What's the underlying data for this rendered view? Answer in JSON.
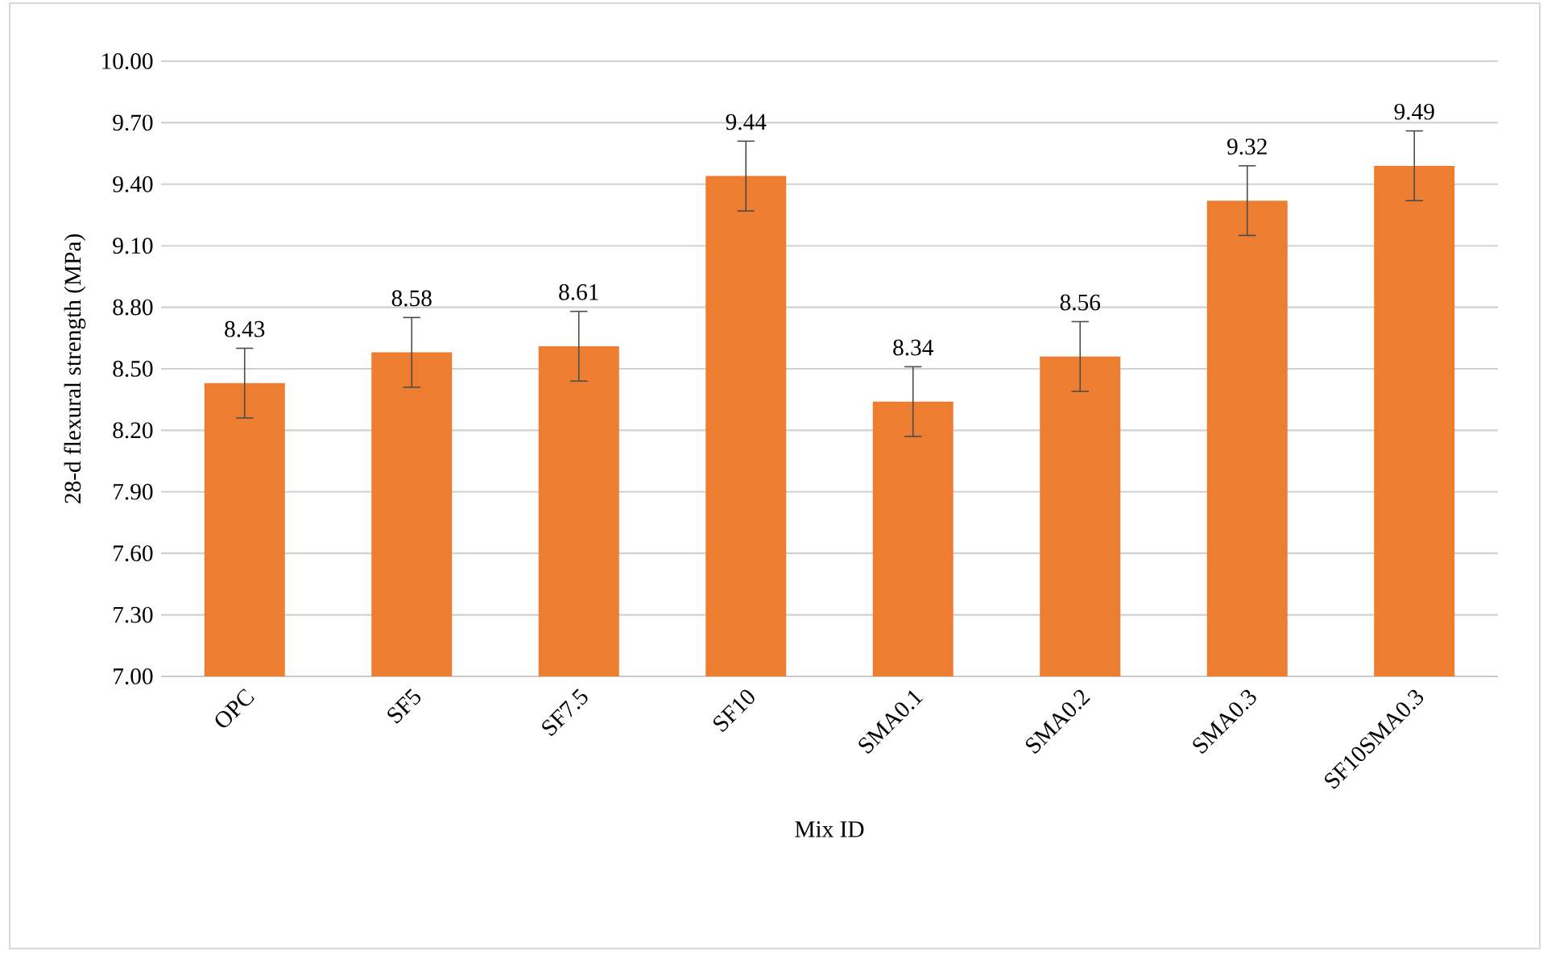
{
  "chart_data": {
    "type": "bar",
    "xlabel": "Mix ID",
    "ylabel": "28-d flexural strength (MPa)",
    "categories": [
      "OPC",
      "SF5",
      "SF7.5",
      "SF10",
      "SMA0.1",
      "SMA0.2",
      "SMA0.3",
      "SF10SMA0.3"
    ],
    "values": [
      8.43,
      8.58,
      8.61,
      9.44,
      8.34,
      8.56,
      9.32,
      9.49
    ],
    "errors": [
      0.17,
      0.17,
      0.17,
      0.17,
      0.17,
      0.17,
      0.17,
      0.17
    ],
    "color": "#ed7d31",
    "ylim": [
      7.0,
      10.0
    ],
    "yticks": [
      {
        "value": 7.0,
        "label": "7.00"
      },
      {
        "value": 7.3,
        "label": "7.30"
      },
      {
        "value": 7.6,
        "label": "7.60"
      },
      {
        "value": 7.9,
        "label": "7.90"
      },
      {
        "value": 8.2,
        "label": "8.20"
      },
      {
        "value": 8.5,
        "label": "8.50"
      },
      {
        "value": 8.8,
        "label": "8.80"
      },
      {
        "value": 9.1,
        "label": "9.10"
      },
      {
        "value": 9.4,
        "label": "9.40"
      },
      {
        "value": 9.7,
        "label": "9.70"
      },
      {
        "value": 10.0,
        "label": "10.00"
      }
    ],
    "grid": "y",
    "data_labels": true
  }
}
